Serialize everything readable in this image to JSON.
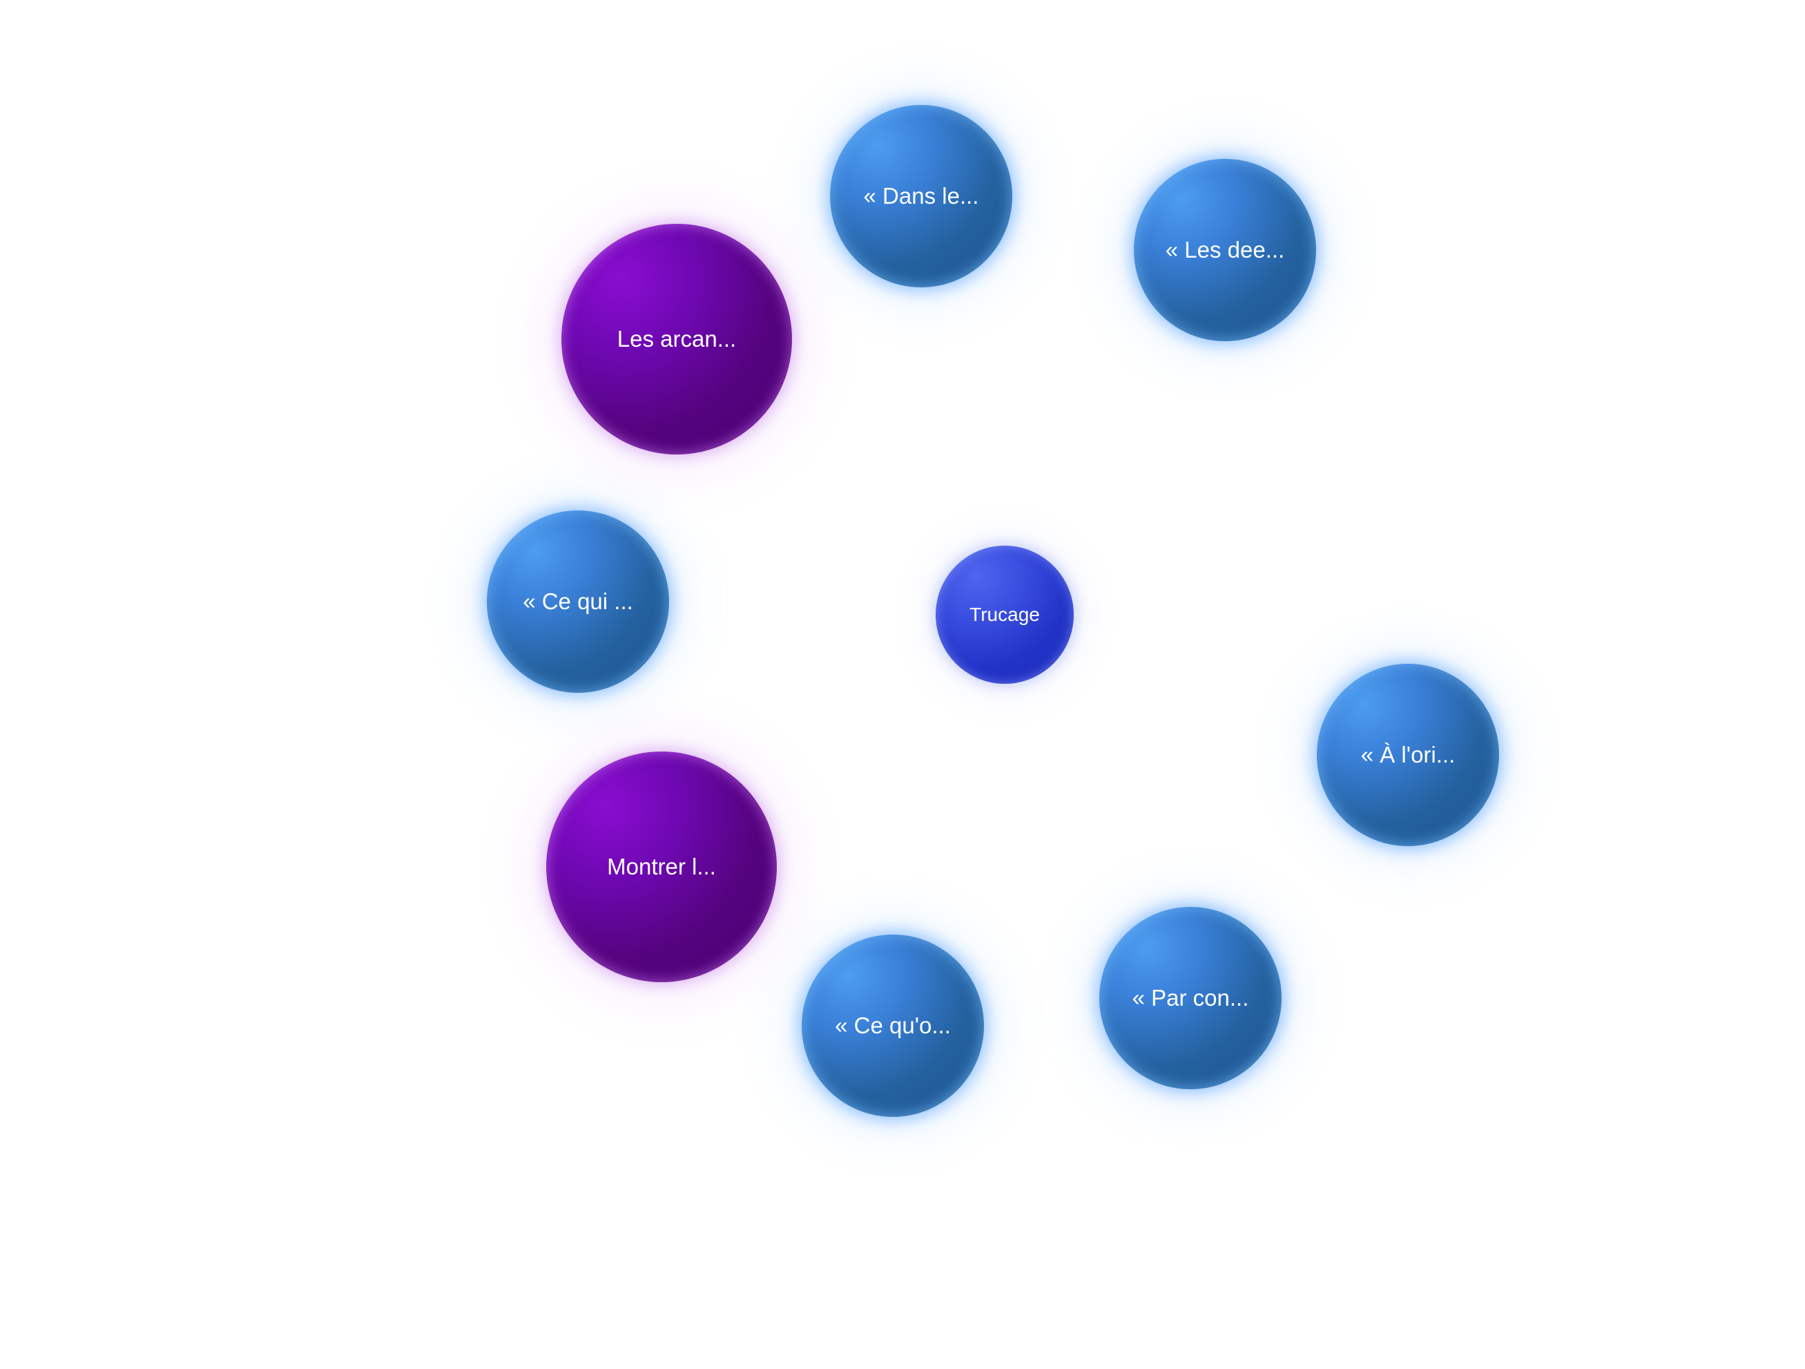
{
  "nodes": {
    "center": {
      "label": "Trucage"
    },
    "items": [
      {
        "label": "« Dans le...",
        "kind": "blue"
      },
      {
        "label": "« Les dee...",
        "kind": "blue"
      },
      {
        "label": "Les arcan...",
        "kind": "purple"
      },
      {
        "label": "« Ce qui ...",
        "kind": "blue"
      },
      {
        "label": "« À l'ori...",
        "kind": "blue"
      },
      {
        "label": "Montrer l...",
        "kind": "purple"
      },
      {
        "label": "« Par con...",
        "kind": "blue"
      },
      {
        "label": "« Ce qu'o...",
        "kind": "blue"
      }
    ]
  },
  "colors": {
    "blue_node": "#24619f",
    "purple_node": "#55037f",
    "center_node": "#2233c8",
    "label_text": "#ffffff",
    "background": "#ffffff"
  }
}
